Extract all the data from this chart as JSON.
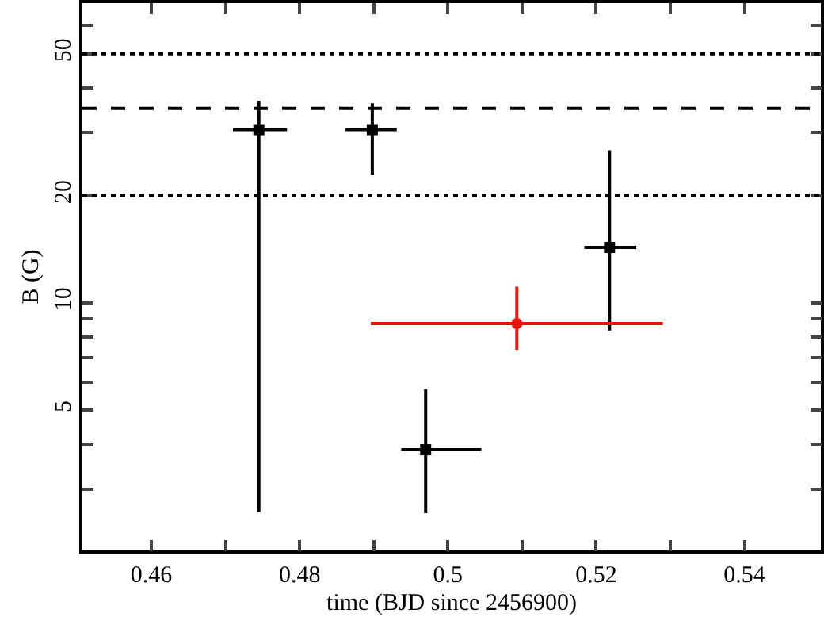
{
  "chart_data": {
    "type": "scatter",
    "xlabel": "time (BJD since 2456900)",
    "ylabel": "B (G)",
    "log": "y",
    "xlim": [
      0.4507,
      0.5503
    ],
    "ylim": [
      2.02,
      69.3
    ],
    "xticks": [
      0.46,
      {
        "value": 0.47,
        "label": null
      },
      0.48,
      {
        "value": 0.49,
        "label": null
      },
      0.5,
      {
        "value": 0.51,
        "label": null
      },
      0.52,
      {
        "value": 0.53,
        "label": null
      },
      0.54
    ],
    "yticks": [
      {
        "value": 3,
        "label": null
      },
      {
        "value": 4,
        "label": null
      },
      5,
      {
        "value": 6,
        "label": null
      },
      {
        "value": 7,
        "label": null
      },
      {
        "value": 8,
        "label": null
      },
      {
        "value": 9,
        "label": null
      },
      10,
      20,
      {
        "value": 30,
        "label": null
      },
      {
        "value": 40,
        "label": null
      },
      50,
      {
        "value": 60,
        "label": null
      }
    ],
    "series": [
      {
        "color": "#000000",
        "marker": "square",
        "x": [
          0.4745,
          0.4898,
          0.497,
          0.5218
        ],
        "values": [
          30.6,
          30.6,
          3.87,
          14.3
        ],
        "errors": [
          [
            2.59,
            36.9
          ],
          [
            22.8,
            36.3
          ],
          [
            2.57,
            5.72
          ],
          [
            8.36,
            26.8
          ]
        ],
        "xerrors": [
          [
            0.471,
            0.4783
          ],
          [
            0.4862,
            0.4931
          ],
          [
            0.4937,
            0.5045
          ],
          [
            0.5184,
            0.5254
          ]
        ]
      },
      {
        "color": "#e8120c",
        "marker": "circle",
        "x": [
          0.5093
        ],
        "values": [
          8.74
        ],
        "errors": [
          [
            7.38,
            11.1
          ]
        ],
        "xerrors": [
          [
            0.4896,
            0.529
          ]
        ]
      }
    ],
    "ref_lines": [
      {
        "axis": "y",
        "value": 50,
        "line_style": "dotted",
        "color": "#000000"
      },
      {
        "axis": "y",
        "value": 35.1,
        "line_style": "dashed",
        "color": "#000000"
      },
      {
        "axis": "y",
        "value": 20,
        "line_style": "dotted",
        "color": "#000000"
      }
    ]
  }
}
